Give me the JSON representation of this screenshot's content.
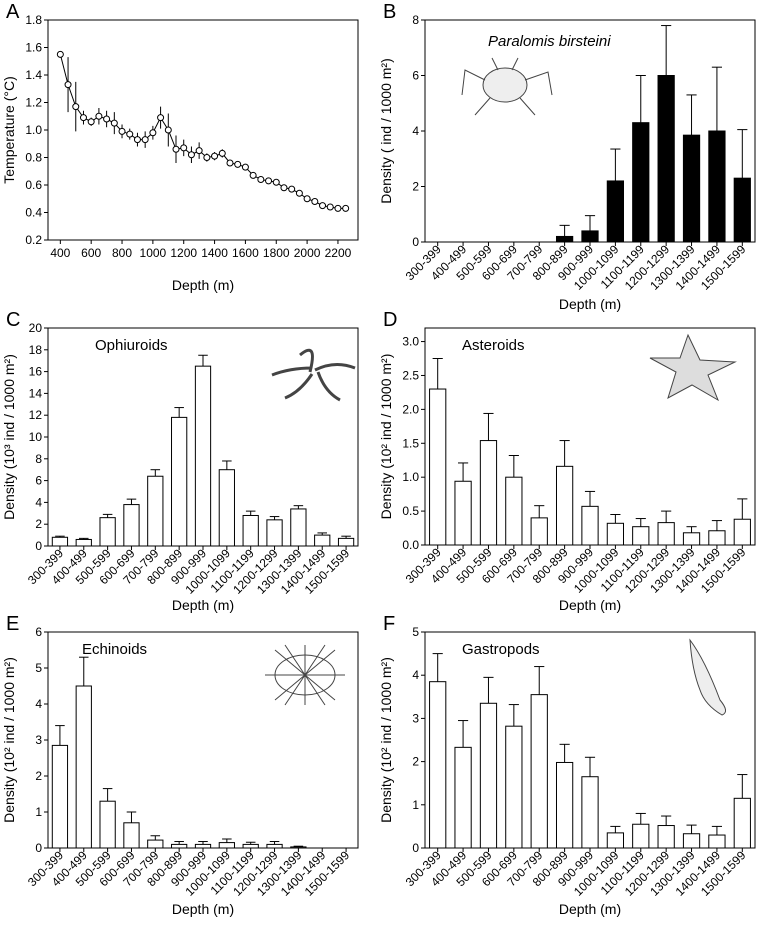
{
  "chart_data": [
    {
      "type": "line",
      "panel_label": "A",
      "x_label": "Depth (m)",
      "y_label": "Temperature (°C)",
      "color": "#000000",
      "x": [
        400,
        450,
        500,
        550,
        600,
        650,
        700,
        750,
        800,
        850,
        900,
        950,
        1000,
        1050,
        1100,
        1150,
        1200,
        1250,
        1300,
        1350,
        1400,
        1450,
        1500,
        1550,
        1600,
        1650,
        1700,
        1750,
        1800,
        1850,
        1900,
        1950,
        2000,
        2050,
        2100,
        2150,
        2200,
        2250
      ],
      "values": [
        1.55,
        1.33,
        1.17,
        1.09,
        1.06,
        1.1,
        1.08,
        1.05,
        0.99,
        0.97,
        0.93,
        0.93,
        0.98,
        1.09,
        1.0,
        0.86,
        0.87,
        0.82,
        0.85,
        0.8,
        0.81,
        0.83,
        0.76,
        0.75,
        0.73,
        0.67,
        0.64,
        0.63,
        0.62,
        0.58,
        0.57,
        0.54,
        0.5,
        0.48,
        0.45,
        0.44,
        0.43,
        0.43
      ],
      "errors": [
        0.01,
        0.2,
        0.18,
        0.05,
        0.03,
        0.06,
        0.06,
        0.08,
        0.05,
        0.04,
        0.05,
        0.06,
        0.05,
        0.08,
        0.12,
        0.1,
        0.06,
        0.06,
        0.06,
        0.03,
        0.03,
        0.03,
        0.01,
        0.01,
        0.01,
        0.01,
        0.01,
        0.01,
        0.01,
        0.01,
        0.01,
        0.01,
        0.01,
        0.01,
        0.01,
        0.01,
        0.01,
        0.01
      ],
      "xlim": [
        320,
        2330
      ],
      "xticks": [
        400,
        600,
        800,
        1000,
        1200,
        1400,
        1600,
        1800,
        2000,
        2200
      ],
      "ylim": [
        0.2,
        1.8
      ],
      "yticks": [
        0.2,
        0.4,
        0.6,
        0.8,
        {
          "value": 1,
          "label": "1.0"
        },
        1.2,
        1.4,
        1.6,
        1.8
      ]
    },
    {
      "type": "bar",
      "panel_label": "B",
      "title": "Paralomis birsteini",
      "x_label": "Depth (m)",
      "y_label": "Density ( ind / 1000 m²)",
      "color": "#000000",
      "categories": [
        "300-399",
        "400-499",
        "500-599",
        "600-699",
        "700-799",
        "800-899",
        "900-999",
        "1000-1099",
        "1100-1199",
        "1200-1299",
        "1300-1399",
        "1400-1499",
        "1500-1599"
      ],
      "values": [
        0,
        0,
        0,
        0,
        0,
        0.2,
        0.4,
        2.2,
        4.3,
        6.0,
        3.85,
        4.0,
        2.3
      ],
      "errors": [
        0,
        0,
        0,
        0,
        0,
        0.4,
        0.55,
        1.15,
        1.7,
        1.8,
        1.45,
        2.3,
        1.75
      ],
      "ylim": [
        0,
        8
      ],
      "yticks": [
        0,
        2,
        4,
        6,
        8
      ]
    },
    {
      "type": "bar",
      "panel_label": "C",
      "title": "Ophiuroids",
      "x_label": "Depth (m)",
      "y_label": "Density (10³ ind / 1000 m²)",
      "color": "#ffffff",
      "categories": [
        "300-399",
        "400-499",
        "500-599",
        "600-699",
        "700-799",
        "800-899",
        "900-999",
        "1000-1099",
        "1100-1199",
        "1200-1299",
        "1300-1399",
        "1400-1499",
        "1500-1599"
      ],
      "values": [
        0.8,
        0.6,
        2.6,
        3.8,
        6.4,
        11.8,
        16.5,
        7.0,
        2.8,
        2.4,
        3.4,
        1.0,
        0.7
      ],
      "errors": [
        0.1,
        0.1,
        0.3,
        0.5,
        0.6,
        0.9,
        1.0,
        0.8,
        0.4,
        0.3,
        0.3,
        0.2,
        0.2
      ],
      "ylim": [
        0,
        20
      ],
      "yticks": [
        0,
        2,
        4,
        6,
        8,
        10,
        12,
        14,
        16,
        18,
        20
      ]
    },
    {
      "type": "bar",
      "panel_label": "D",
      "title": "Asteroids",
      "x_label": "Depth (m)",
      "y_label": "Density (10² ind / 1000 m²)",
      "color": "#ffffff",
      "categories": [
        "300-399",
        "400-499",
        "500-599",
        "600-699",
        "700-799",
        "800-899",
        "900-999",
        "1000-1099",
        "1100-1199",
        "1200-1299",
        "1300-1399",
        "1400-1499",
        "1500-1599"
      ],
      "values": [
        2.3,
        0.94,
        1.54,
        1.0,
        0.4,
        1.16,
        0.57,
        0.32,
        0.27,
        0.33,
        0.18,
        0.21,
        0.38
      ],
      "errors": [
        0.45,
        0.27,
        0.4,
        0.32,
        0.18,
        0.38,
        0.22,
        0.13,
        0.12,
        0.17,
        0.09,
        0.15,
        0.3
      ],
      "ylim": [
        0,
        3.2
      ],
      "yticks": [
        {
          "value": 0,
          "label": "0.0"
        },
        0.5,
        {
          "value": 1,
          "label": "1.0"
        },
        1.5,
        {
          "value": 2,
          "label": "2.0"
        },
        2.5,
        {
          "value": 3,
          "label": "3.0"
        }
      ]
    },
    {
      "type": "bar",
      "panel_label": "E",
      "title": "Echinoids",
      "x_label": "Depth (m)",
      "y_label": "Density (10² ind / 1000 m²)",
      "color": "#ffffff",
      "categories": [
        "300-399",
        "400-499",
        "500-599",
        "600-699",
        "700-799",
        "800-899",
        "900-999",
        "1000-1099",
        "1100-1199",
        "1200-1299",
        "1300-1399",
        "1400-1499",
        "1500-1599"
      ],
      "values": [
        2.85,
        4.5,
        1.3,
        0.7,
        0.22,
        0.1,
        0.1,
        0.15,
        0.1,
        0.1,
        0.03,
        0,
        0
      ],
      "errors": [
        0.55,
        0.8,
        0.35,
        0.3,
        0.12,
        0.08,
        0.08,
        0.1,
        0.06,
        0.08,
        0.02,
        0,
        0
      ],
      "ylim": [
        0,
        6
      ],
      "yticks": [
        0,
        1,
        2,
        3,
        4,
        5,
        6
      ]
    },
    {
      "type": "bar",
      "panel_label": "F",
      "title": "Gastropods",
      "x_label": "Depth (m)",
      "y_label": "Density (10² ind / 1000 m²)",
      "color": "#ffffff",
      "categories": [
        "300-399",
        "400-499",
        "500-599",
        "600-699",
        "700-799",
        "800-899",
        "900-999",
        "1000-1099",
        "1100-1199",
        "1200-1299",
        "1300-1399",
        "1400-1499",
        "1500-1599"
      ],
      "values": [
        3.85,
        2.33,
        3.35,
        2.82,
        3.55,
        1.98,
        1.65,
        0.35,
        0.55,
        0.52,
        0.33,
        0.3,
        1.15
      ],
      "errors": [
        0.65,
        0.62,
        0.6,
        0.5,
        0.65,
        0.42,
        0.45,
        0.15,
        0.25,
        0.22,
        0.2,
        0.2,
        0.55
      ],
      "ylim": [
        0,
        5
      ],
      "yticks": [
        0,
        1,
        2,
        3,
        4,
        5
      ]
    }
  ]
}
